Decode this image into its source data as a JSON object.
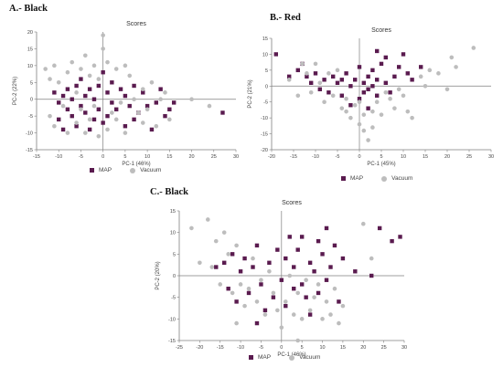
{
  "chart_data": [
    {
      "panel_label": "A.- Black",
      "type": "scatter",
      "title": "Scores",
      "xlabel": "PC-1 (46%)",
      "ylabel": "PC-2 (22%)",
      "xlim": [
        -15,
        30
      ],
      "ylim": [
        -15,
        20
      ],
      "xticks": [
        -15,
        -10,
        -5,
        0,
        5,
        10,
        15,
        20,
        25,
        30
      ],
      "yticks": [
        -15,
        -10,
        -5,
        0,
        5,
        10,
        15,
        20
      ],
      "legend": [
        "MAP",
        "Vacuum"
      ],
      "series": [
        {
          "name": "MAP",
          "marker": "square",
          "color": "#5a1b4f",
          "points": [
            [
              -11,
              2
            ],
            [
              -10,
              -1
            ],
            [
              -10,
              -6
            ],
            [
              -9,
              -9
            ],
            [
              -9,
              1
            ],
            [
              -8,
              -3
            ],
            [
              -8,
              3
            ],
            [
              -7,
              -5
            ],
            [
              -7,
              0
            ],
            [
              -6,
              -8
            ],
            [
              -6,
              4
            ],
            [
              -5,
              -2
            ],
            [
              -5,
              6
            ],
            [
              -4,
              -4
            ],
            [
              -4,
              1
            ],
            [
              -3,
              -9
            ],
            [
              -3,
              3
            ],
            [
              -2,
              -6
            ],
            [
              -2,
              0
            ],
            [
              -1,
              4
            ],
            [
              -1,
              -3
            ],
            [
              0,
              -7
            ],
            [
              0,
              8
            ],
            [
              1,
              2
            ],
            [
              1,
              -5
            ],
            [
              2,
              5
            ],
            [
              2,
              -1
            ],
            [
              3,
              -3
            ],
            [
              4,
              3
            ],
            [
              5,
              -8
            ],
            [
              5,
              1
            ],
            [
              6,
              -2
            ],
            [
              7,
              4
            ],
            [
              7,
              -6
            ],
            [
              8,
              -4
            ],
            [
              9,
              2
            ],
            [
              10,
              -2
            ],
            [
              11,
              -9
            ],
            [
              12,
              -1
            ],
            [
              13,
              3
            ],
            [
              14,
              -5
            ],
            [
              15,
              -3
            ],
            [
              16,
              -1
            ],
            [
              27,
              -4
            ]
          ]
        },
        {
          "name": "Vacuum",
          "marker": "circle",
          "color": "#bdbdbd",
          "points": [
            [
              -13,
              9
            ],
            [
              -12,
              6
            ],
            [
              -12,
              -5
            ],
            [
              -11,
              -8
            ],
            [
              -11,
              10
            ],
            [
              -10,
              5
            ],
            [
              -9,
              -2
            ],
            [
              -8,
              8
            ],
            [
              -8,
              -10
            ],
            [
              -7,
              11
            ],
            [
              -6,
              2
            ],
            [
              -6,
              -7
            ],
            [
              -5,
              9
            ],
            [
              -5,
              -3
            ],
            [
              -4,
              13
            ],
            [
              -4,
              -10
            ],
            [
              -3,
              7
            ],
            [
              -3,
              -6
            ],
            [
              -2,
              10
            ],
            [
              -2,
              -2
            ],
            [
              -1,
              6
            ],
            [
              -1,
              -11
            ],
            [
              0,
              19
            ],
            [
              0,
              15
            ],
            [
              1,
              -9
            ],
            [
              1,
              11
            ],
            [
              2,
              -4
            ],
            [
              3,
              9
            ],
            [
              3,
              -6
            ],
            [
              4,
              -1
            ],
            [
              5,
              10
            ],
            [
              5,
              -10
            ],
            [
              6,
              7
            ],
            [
              7,
              0
            ],
            [
              8,
              -4
            ],
            [
              9,
              3
            ],
            [
              9,
              -7
            ],
            [
              10,
              -3
            ],
            [
              11,
              5
            ],
            [
              12,
              -8
            ],
            [
              13,
              0
            ],
            [
              14,
              2
            ],
            [
              15,
              -6
            ],
            [
              20,
              0
            ],
            [
              24,
              -2
            ]
          ]
        }
      ]
    },
    {
      "panel_label": "B.- Red",
      "type": "scatter",
      "title": "Scores",
      "xlabel": "PC-1 (45%)",
      "ylabel": "PC-2 (21%)",
      "xlim": [
        -20,
        30
      ],
      "ylim": [
        -20,
        15
      ],
      "xticks": [
        -20,
        -15,
        -10,
        -5,
        0,
        5,
        10,
        15,
        20,
        25,
        30
      ],
      "yticks": [
        -20,
        -15,
        -10,
        -5,
        0,
        5,
        10,
        15
      ],
      "legend": [
        "MAP",
        "Vacuum"
      ],
      "series": [
        {
          "name": "MAP",
          "marker": "square",
          "color": "#5a1b4f",
          "points": [
            [
              -19,
              10
            ],
            [
              -16,
              3
            ],
            [
              -14,
              5
            ],
            [
              -13,
              7
            ],
            [
              -12,
              3
            ],
            [
              -11,
              1
            ],
            [
              -10,
              4
            ],
            [
              -9,
              -1
            ],
            [
              -8,
              2
            ],
            [
              -7,
              -2
            ],
            [
              -6,
              3
            ],
            [
              -5,
              1
            ],
            [
              -4,
              -3
            ],
            [
              -3,
              4
            ],
            [
              -2,
              0
            ],
            [
              -1,
              2
            ],
            [
              0,
              -4
            ],
            [
              0,
              6
            ],
            [
              1,
              1
            ],
            [
              1,
              -2
            ],
            [
              2,
              3
            ],
            [
              2,
              -1
            ],
            [
              3,
              0
            ],
            [
              3,
              5
            ],
            [
              4,
              -3
            ],
            [
              4,
              2
            ],
            [
              5,
              7
            ],
            [
              6,
              1
            ],
            [
              6,
              9
            ],
            [
              7,
              -2
            ],
            [
              8,
              3
            ],
            [
              9,
              6
            ],
            [
              10,
              10
            ],
            [
              11,
              4
            ],
            [
              12,
              2
            ],
            [
              14,
              6
            ],
            [
              4,
              11
            ],
            [
              -2,
              -6
            ],
            [
              -4,
              2
            ],
            [
              2,
              -7
            ]
          ]
        },
        {
          "name": "Vacuum",
          "marker": "circle",
          "color": "#bdbdbd",
          "points": [
            [
              -16,
              2
            ],
            [
              -14,
              -3
            ],
            [
              -12,
              4
            ],
            [
              -11,
              -2
            ],
            [
              -10,
              7
            ],
            [
              -9,
              1
            ],
            [
              -8,
              -5
            ],
            [
              -7,
              4
            ],
            [
              -6,
              -3
            ],
            [
              -5,
              5
            ],
            [
              -4,
              -7
            ],
            [
              -3,
              -4
            ],
            [
              -2,
              -10
            ],
            [
              -1,
              -6
            ],
            [
              0,
              -12
            ],
            [
              1,
              -14
            ],
            [
              1,
              -9
            ],
            [
              2,
              -17
            ],
            [
              3,
              -8
            ],
            [
              4,
              -5
            ],
            [
              5,
              -9
            ],
            [
              6,
              -2
            ],
            [
              7,
              -4
            ],
            [
              8,
              -7
            ],
            [
              9,
              -1
            ],
            [
              10,
              -3
            ],
            [
              12,
              -10
            ],
            [
              14,
              3
            ],
            [
              15,
              0
            ],
            [
              16,
              5
            ],
            [
              18,
              4
            ],
            [
              20,
              -1
            ],
            [
              21,
              9
            ],
            [
              22,
              6
            ],
            [
              26,
              12
            ],
            [
              0,
              -5
            ],
            [
              -3,
              -8
            ],
            [
              3,
              -13
            ],
            [
              -13,
              7
            ],
            [
              11,
              -8
            ]
          ]
        }
      ]
    },
    {
      "panel_label": "C.- Black",
      "type": "scatter",
      "title": "Scores",
      "xlabel": "PC-1 (46%)",
      "ylabel": "PC-2 (20%)",
      "xlim": [
        -25,
        30
      ],
      "ylim": [
        -15,
        15
      ],
      "xticks": [
        -25,
        -20,
        -15,
        -10,
        -5,
        0,
        5,
        10,
        15,
        20,
        25,
        30
      ],
      "yticks": [
        -15,
        -10,
        -5,
        0,
        5,
        10,
        15
      ],
      "legend": [
        "MAP",
        "Vacuum"
      ],
      "series": [
        {
          "name": "MAP",
          "marker": "square",
          "color": "#5a1b4f",
          "points": [
            [
              -16,
              2
            ],
            [
              -13,
              -3
            ],
            [
              -12,
              5
            ],
            [
              -11,
              -6
            ],
            [
              -10,
              1
            ],
            [
              -9,
              4
            ],
            [
              -8,
              -4
            ],
            [
              -7,
              2
            ],
            [
              -6,
              7
            ],
            [
              -5,
              -2
            ],
            [
              -4,
              -8
            ],
            [
              -3,
              3
            ],
            [
              -2,
              -5
            ],
            [
              -1,
              6
            ],
            [
              0,
              -1
            ],
            [
              1,
              4
            ],
            [
              1,
              -7
            ],
            [
              2,
              9
            ],
            [
              3,
              -3
            ],
            [
              3,
              2
            ],
            [
              4,
              6
            ],
            [
              5,
              -2
            ],
            [
              5,
              9
            ],
            [
              6,
              -5
            ],
            [
              7,
              3
            ],
            [
              7,
              -9
            ],
            [
              8,
              1
            ],
            [
              9,
              8
            ],
            [
              9,
              -4
            ],
            [
              10,
              5
            ],
            [
              11,
              -1
            ],
            [
              11,
              11
            ],
            [
              12,
              2
            ],
            [
              13,
              7
            ],
            [
              14,
              -6
            ],
            [
              15,
              4
            ],
            [
              18,
              1
            ],
            [
              22,
              0
            ],
            [
              24,
              11
            ],
            [
              27,
              8
            ],
            [
              29,
              9
            ],
            [
              -6,
              -11
            ],
            [
              -14,
              3
            ]
          ]
        },
        {
          "name": "Vacuum",
          "marker": "circle",
          "color": "#bdbdbd",
          "points": [
            [
              -22,
              11
            ],
            [
              -18,
              13
            ],
            [
              -17,
              2
            ],
            [
              -16,
              8
            ],
            [
              -15,
              -2
            ],
            [
              -14,
              10
            ],
            [
              -13,
              5
            ],
            [
              -12,
              -4
            ],
            [
              -11,
              7
            ],
            [
              -10,
              -2
            ],
            [
              -9,
              -7
            ],
            [
              -8,
              -3
            ],
            [
              -7,
              4
            ],
            [
              -6,
              -6
            ],
            [
              -5,
              -1
            ],
            [
              -4,
              -9
            ],
            [
              -3,
              1
            ],
            [
              -2,
              -4
            ],
            [
              -1,
              -8
            ],
            [
              0,
              -12
            ],
            [
              1,
              -6
            ],
            [
              2,
              0
            ],
            [
              3,
              -9
            ],
            [
              4,
              -4
            ],
            [
              5,
              -10
            ],
            [
              6,
              -1
            ],
            [
              7,
              -8
            ],
            [
              8,
              -5
            ],
            [
              9,
              -2
            ],
            [
              10,
              -10
            ],
            [
              11,
              -6
            ],
            [
              12,
              -9
            ],
            [
              13,
              -3
            ],
            [
              14,
              -11
            ],
            [
              15,
              -7
            ],
            [
              20,
              12
            ],
            [
              22,
              4
            ],
            [
              -20,
              3
            ],
            [
              -11,
              -11
            ],
            [
              4,
              -15
            ]
          ]
        }
      ]
    }
  ],
  "colors": {
    "map": "#5a1b4f",
    "vacuum": "#bdbdbd",
    "axis": "#7f7f7f"
  }
}
